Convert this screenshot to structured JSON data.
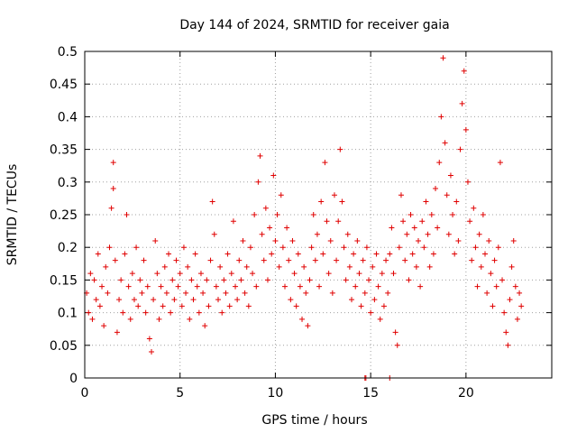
{
  "chart_data": {
    "type": "scatter",
    "title": "Day 144 of 2024, SRMTID for receiver gaia",
    "xlabel": "GPS time / hours",
    "ylabel": "SRMTID / TECUs",
    "xlim": [
      0,
      24.5
    ],
    "ylim": [
      0,
      0.5
    ],
    "xticks": [
      0,
      5,
      10,
      15,
      20
    ],
    "xtick_labels": [
      "0",
      "5",
      "10",
      "15",
      "20"
    ],
    "yticks": [
      0,
      0.05,
      0.1,
      0.15,
      0.2,
      0.25,
      0.3,
      0.35,
      0.4,
      0.45,
      0.5
    ],
    "ytick_labels": [
      "0",
      "0.05",
      "0.1",
      "0.15",
      "0.2",
      "0.25",
      "0.3",
      "0.35",
      "0.4",
      "0.45",
      "0.5"
    ],
    "grid": true,
    "marker": "+",
    "series": [
      {
        "name": "SRMTID",
        "color": "#e00000",
        "points": [
          [
            0.1,
            0.13
          ],
          [
            0.2,
            0.1
          ],
          [
            0.3,
            0.16
          ],
          [
            0.4,
            0.09
          ],
          [
            0.5,
            0.15
          ],
          [
            0.6,
            0.12
          ],
          [
            0.7,
            0.19
          ],
          [
            0.8,
            0.11
          ],
          [
            0.9,
            0.14
          ],
          [
            1.0,
            0.08
          ],
          [
            1.1,
            0.17
          ],
          [
            1.2,
            0.13
          ],
          [
            1.3,
            0.2
          ],
          [
            1.4,
            0.26
          ],
          [
            1.5,
            0.33
          ],
          [
            1.5,
            0.29
          ],
          [
            1.6,
            0.18
          ],
          [
            1.7,
            0.07
          ],
          [
            1.8,
            0.12
          ],
          [
            1.9,
            0.15
          ],
          [
            2.0,
            0.1
          ],
          [
            2.1,
            0.19
          ],
          [
            2.2,
            0.25
          ],
          [
            2.3,
            0.14
          ],
          [
            2.4,
            0.09
          ],
          [
            2.5,
            0.16
          ],
          [
            2.6,
            0.12
          ],
          [
            2.7,
            0.2
          ],
          [
            2.8,
            0.11
          ],
          [
            2.9,
            0.15
          ],
          [
            3.0,
            0.13
          ],
          [
            3.1,
            0.18
          ],
          [
            3.2,
            0.1
          ],
          [
            3.3,
            0.14
          ],
          [
            3.4,
            0.06
          ],
          [
            3.5,
            0.04
          ],
          [
            3.6,
            0.12
          ],
          [
            3.7,
            0.21
          ],
          [
            3.8,
            0.16
          ],
          [
            3.9,
            0.09
          ],
          [
            4.0,
            0.14
          ],
          [
            4.1,
            0.11
          ],
          [
            4.2,
            0.17
          ],
          [
            4.3,
            0.13
          ],
          [
            4.4,
            0.19
          ],
          [
            4.5,
            0.1
          ],
          [
            4.6,
            0.15
          ],
          [
            4.7,
            0.12
          ],
          [
            4.8,
            0.18
          ],
          [
            4.9,
            0.14
          ],
          [
            5.0,
            0.16
          ],
          [
            5.1,
            0.11
          ],
          [
            5.2,
            0.2
          ],
          [
            5.3,
            0.13
          ],
          [
            5.4,
            0.17
          ],
          [
            5.5,
            0.09
          ],
          [
            5.6,
            0.15
          ],
          [
            5.7,
            0.12
          ],
          [
            5.8,
            0.19
          ],
          [
            5.9,
            0.14
          ],
          [
            6.0,
            0.1
          ],
          [
            6.1,
            0.16
          ],
          [
            6.2,
            0.13
          ],
          [
            6.3,
            0.08
          ],
          [
            6.4,
            0.15
          ],
          [
            6.5,
            0.11
          ],
          [
            6.6,
            0.18
          ],
          [
            6.7,
            0.27
          ],
          [
            6.8,
            0.22
          ],
          [
            6.9,
            0.14
          ],
          [
            7.0,
            0.12
          ],
          [
            7.1,
            0.17
          ],
          [
            7.2,
            0.1
          ],
          [
            7.3,
            0.15
          ],
          [
            7.4,
            0.13
          ],
          [
            7.5,
            0.19
          ],
          [
            7.6,
            0.11
          ],
          [
            7.7,
            0.16
          ],
          [
            7.8,
            0.24
          ],
          [
            7.9,
            0.14
          ],
          [
            8.0,
            0.12
          ],
          [
            8.1,
            0.18
          ],
          [
            8.2,
            0.15
          ],
          [
            8.3,
            0.21
          ],
          [
            8.4,
            0.13
          ],
          [
            8.5,
            0.17
          ],
          [
            8.6,
            0.11
          ],
          [
            8.7,
            0.2
          ],
          [
            8.8,
            0.16
          ],
          [
            8.9,
            0.25
          ],
          [
            9.0,
            0.14
          ],
          [
            9.1,
            0.3
          ],
          [
            9.2,
            0.34
          ],
          [
            9.3,
            0.22
          ],
          [
            9.4,
            0.18
          ],
          [
            9.5,
            0.26
          ],
          [
            9.6,
            0.15
          ],
          [
            9.7,
            0.23
          ],
          [
            9.8,
            0.19
          ],
          [
            9.9,
            0.31
          ],
          [
            10.0,
            0.21
          ],
          [
            10.1,
            0.25
          ],
          [
            10.2,
            0.17
          ],
          [
            10.3,
            0.28
          ],
          [
            10.4,
            0.2
          ],
          [
            10.5,
            0.14
          ],
          [
            10.6,
            0.23
          ],
          [
            10.7,
            0.18
          ],
          [
            10.8,
            0.12
          ],
          [
            10.9,
            0.21
          ],
          [
            11.0,
            0.16
          ],
          [
            11.1,
            0.11
          ],
          [
            11.2,
            0.19
          ],
          [
            11.3,
            0.14
          ],
          [
            11.4,
            0.09
          ],
          [
            11.5,
            0.17
          ],
          [
            11.6,
            0.13
          ],
          [
            11.7,
            0.08
          ],
          [
            11.8,
            0.15
          ],
          [
            11.9,
            0.2
          ],
          [
            12.0,
            0.25
          ],
          [
            12.1,
            0.18
          ],
          [
            12.2,
            0.22
          ],
          [
            12.3,
            0.14
          ],
          [
            12.4,
            0.27
          ],
          [
            12.5,
            0.19
          ],
          [
            12.6,
            0.33
          ],
          [
            12.7,
            0.24
          ],
          [
            12.8,
            0.16
          ],
          [
            12.9,
            0.21
          ],
          [
            13.0,
            0.13
          ],
          [
            13.1,
            0.28
          ],
          [
            13.2,
            0.18
          ],
          [
            13.3,
            0.24
          ],
          [
            13.4,
            0.35
          ],
          [
            13.5,
            0.27
          ],
          [
            13.6,
            0.2
          ],
          [
            13.7,
            0.15
          ],
          [
            13.8,
            0.22
          ],
          [
            13.9,
            0.17
          ],
          [
            14.0,
            0.12
          ],
          [
            14.1,
            0.19
          ],
          [
            14.2,
            0.14
          ],
          [
            14.3,
            0.21
          ],
          [
            14.4,
            0.16
          ],
          [
            14.5,
            0.11
          ],
          [
            14.6,
            0.18
          ],
          [
            14.7,
            0.13
          ],
          [
            14.8,
            0.2
          ],
          [
            14.9,
            0.15
          ],
          [
            15.0,
            0.1
          ],
          [
            15.1,
            0.17
          ],
          [
            15.2,
            0.12
          ],
          [
            15.3,
            0.19
          ],
          [
            15.4,
            0.14
          ],
          [
            15.5,
            0.09
          ],
          [
            15.6,
            0.16
          ],
          [
            15.7,
            0.11
          ],
          [
            15.8,
            0.18
          ],
          [
            15.9,
            0.13
          ],
          [
            16.0,
            0.19
          ],
          [
            16.1,
            0.23
          ],
          [
            16.2,
            0.16
          ],
          [
            16.3,
            0.07
          ],
          [
            16.4,
            0.05
          ],
          [
            16.5,
            0.2
          ],
          [
            16.6,
            0.28
          ],
          [
            16.7,
            0.24
          ],
          [
            16.8,
            0.18
          ],
          [
            16.9,
            0.22
          ],
          [
            17.0,
            0.15
          ],
          [
            17.1,
            0.25
          ],
          [
            17.2,
            0.19
          ],
          [
            17.3,
            0.23
          ],
          [
            17.4,
            0.17
          ],
          [
            17.5,
            0.21
          ],
          [
            17.6,
            0.14
          ],
          [
            17.7,
            0.24
          ],
          [
            17.8,
            0.2
          ],
          [
            17.9,
            0.27
          ],
          [
            18.0,
            0.22
          ],
          [
            18.1,
            0.17
          ],
          [
            18.2,
            0.25
          ],
          [
            18.3,
            0.19
          ],
          [
            18.4,
            0.29
          ],
          [
            18.5,
            0.23
          ],
          [
            18.6,
            0.33
          ],
          [
            18.7,
            0.4
          ],
          [
            18.8,
            0.49
          ],
          [
            18.9,
            0.36
          ],
          [
            19.0,
            0.28
          ],
          [
            19.1,
            0.22
          ],
          [
            19.2,
            0.31
          ],
          [
            19.3,
            0.25
          ],
          [
            19.4,
            0.19
          ],
          [
            19.5,
            0.27
          ],
          [
            19.6,
            0.21
          ],
          [
            19.7,
            0.35
          ],
          [
            19.8,
            0.42
          ],
          [
            19.9,
            0.47
          ],
          [
            20.0,
            0.38
          ],
          [
            20.1,
            0.3
          ],
          [
            20.2,
            0.24
          ],
          [
            20.3,
            0.18
          ],
          [
            20.4,
            0.26
          ],
          [
            20.5,
            0.2
          ],
          [
            20.6,
            0.14
          ],
          [
            20.7,
            0.22
          ],
          [
            20.8,
            0.17
          ],
          [
            20.9,
            0.25
          ],
          [
            21.0,
            0.19
          ],
          [
            21.1,
            0.13
          ],
          [
            21.2,
            0.21
          ],
          [
            21.3,
            0.16
          ],
          [
            21.4,
            0.11
          ],
          [
            21.5,
            0.18
          ],
          [
            21.6,
            0.14
          ],
          [
            21.7,
            0.2
          ],
          [
            21.8,
            0.33
          ],
          [
            21.9,
            0.15
          ],
          [
            22.0,
            0.1
          ],
          [
            22.1,
            0.07
          ],
          [
            22.2,
            0.05
          ],
          [
            22.3,
            0.12
          ],
          [
            22.4,
            0.17
          ],
          [
            22.5,
            0.21
          ],
          [
            22.6,
            0.14
          ],
          [
            22.7,
            0.09
          ],
          [
            22.8,
            0.13
          ],
          [
            22.9,
            0.11
          ],
          [
            14.7,
            0.0
          ],
          [
            14.75,
            0.0
          ],
          [
            16.0,
            0.0
          ]
        ]
      }
    ]
  }
}
